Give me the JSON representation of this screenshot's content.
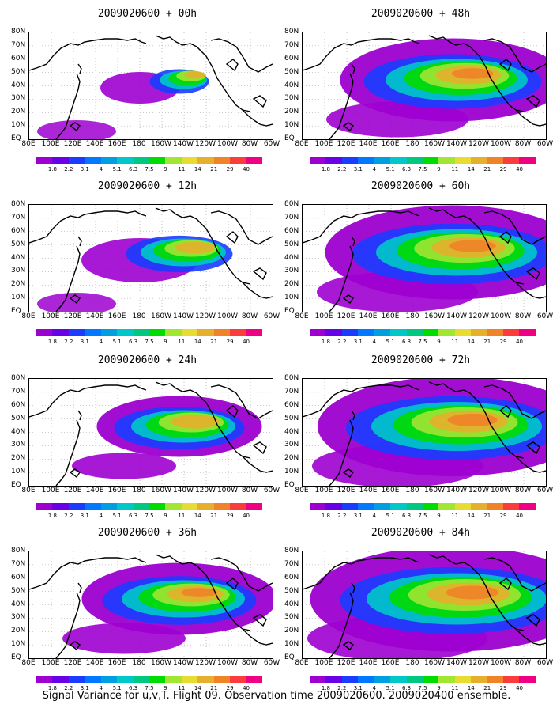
{
  "panels": [
    {
      "title": "2009020600 + 00h",
      "intensity": 0.25
    },
    {
      "title": "2009020600 + 48h",
      "intensity": 0.75
    },
    {
      "title": "2009020600 + 12h",
      "intensity": 0.45
    },
    {
      "title": "2009020600 + 60h",
      "intensity": 0.85
    },
    {
      "title": "2009020600 + 24h",
      "intensity": 0.55
    },
    {
      "title": "2009020600 + 72h",
      "intensity": 0.9
    },
    {
      "title": "2009020600 + 36h",
      "intensity": 0.65
    },
    {
      "title": "2009020600 + 84h",
      "intensity": 0.95
    }
  ],
  "lat_labels": [
    "80N",
    "70N",
    "60N",
    "50N",
    "40N",
    "30N",
    "20N",
    "10N",
    "EQ"
  ],
  "lon_labels": [
    "80E",
    "100E",
    "120E",
    "140E",
    "160E",
    "180",
    "160W",
    "140W",
    "120W",
    "100W",
    "80W",
    "60W"
  ],
  "colorbar": {
    "colors": [
      "#9d00d0",
      "#6800e8",
      "#1a3cff",
      "#0078ff",
      "#00a0e0",
      "#00c8c8",
      "#00c880",
      "#00dc00",
      "#a0e632",
      "#e6dc32",
      "#e6af2d",
      "#f08228",
      "#fa3c3c",
      "#f00082"
    ],
    "labels": [
      "1.8",
      "2.2",
      "3.1",
      "4",
      "5.1",
      "6.3",
      "7.5",
      "9",
      "11",
      "14",
      "21",
      "29",
      "40"
    ]
  },
  "footer": "Signal Variance for u,v,T. Flight 09. Observation time 2009020600. 2009020400 ensemble."
}
